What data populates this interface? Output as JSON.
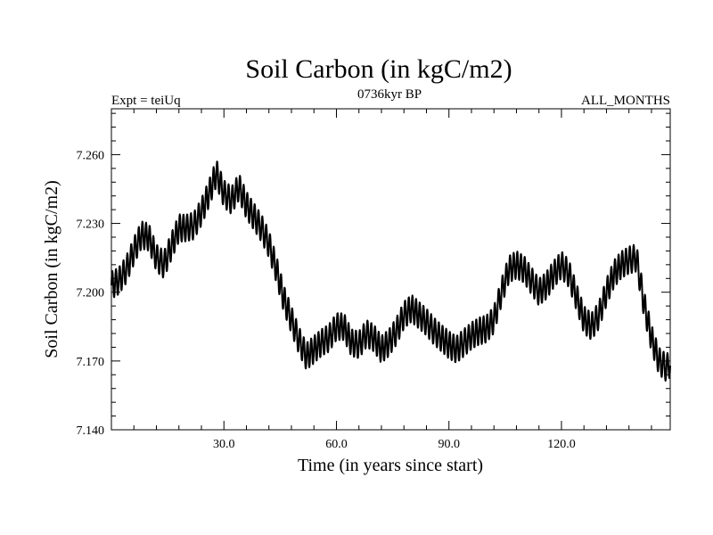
{
  "chart_data": {
    "type": "line",
    "title": "Soil Carbon (in kgC/m2)",
    "subtitle_left": "Expt = teiUq",
    "subtitle_center": "0736kyr BP",
    "subtitle_right": "ALL_MONTHS",
    "xlabel": "Time (in years since start)",
    "ylabel": "Soil Carbon (in kgC/m2)",
    "xlim": [
      0,
      149
    ],
    "ylim": [
      7.14,
      7.28
    ],
    "x_ticks": [
      30,
      60,
      90,
      120
    ],
    "x_tick_labels": [
      "30.0",
      "60.0",
      "90.0",
      "120.0"
    ],
    "y_ticks": [
      7.14,
      7.17,
      7.2,
      7.23,
      7.26
    ],
    "y_tick_labels": [
      "7.140",
      "7.170",
      "7.200",
      "7.230",
      "7.260"
    ],
    "seasonal_amplitude": 0.006,
    "series": [
      {
        "name": "Soil Carbon",
        "color": "#000000",
        "annual_mean": {
          "x": [
            0,
            2,
            4,
            6,
            8,
            10,
            12,
            14,
            16,
            18,
            20,
            22,
            24,
            26,
            28,
            30,
            32,
            34,
            36,
            38,
            40,
            42,
            44,
            46,
            48,
            50,
            52,
            54,
            56,
            58,
            60,
            62,
            64,
            66,
            68,
            70,
            72,
            74,
            76,
            78,
            80,
            82,
            84,
            86,
            88,
            90,
            92,
            94,
            96,
            98,
            100,
            102,
            104,
            106,
            108,
            110,
            112,
            114,
            116,
            118,
            120,
            122,
            124,
            126,
            128,
            130,
            132,
            134,
            136,
            138,
            140,
            142,
            144,
            146,
            148,
            149
          ],
          "y": [
            7.203,
            7.205,
            7.21,
            7.218,
            7.225,
            7.224,
            7.215,
            7.212,
            7.22,
            7.228,
            7.228,
            7.229,
            7.235,
            7.243,
            7.252,
            7.243,
            7.24,
            7.246,
            7.238,
            7.233,
            7.228,
            7.221,
            7.21,
            7.197,
            7.188,
            7.179,
            7.172,
            7.175,
            7.178,
            7.18,
            7.185,
            7.185,
            7.178,
            7.177,
            7.182,
            7.18,
            7.175,
            7.178,
            7.183,
            7.19,
            7.193,
            7.19,
            7.187,
            7.183,
            7.18,
            7.177,
            7.175,
            7.178,
            7.181,
            7.183,
            7.184,
            7.188,
            7.2,
            7.21,
            7.212,
            7.21,
            7.205,
            7.2,
            7.203,
            7.208,
            7.212,
            7.208,
            7.198,
            7.188,
            7.185,
            7.19,
            7.2,
            7.208,
            7.212,
            7.214,
            7.215,
            7.195,
            7.18,
            7.17,
            7.167,
            7.169
          ]
        }
      }
    ]
  }
}
